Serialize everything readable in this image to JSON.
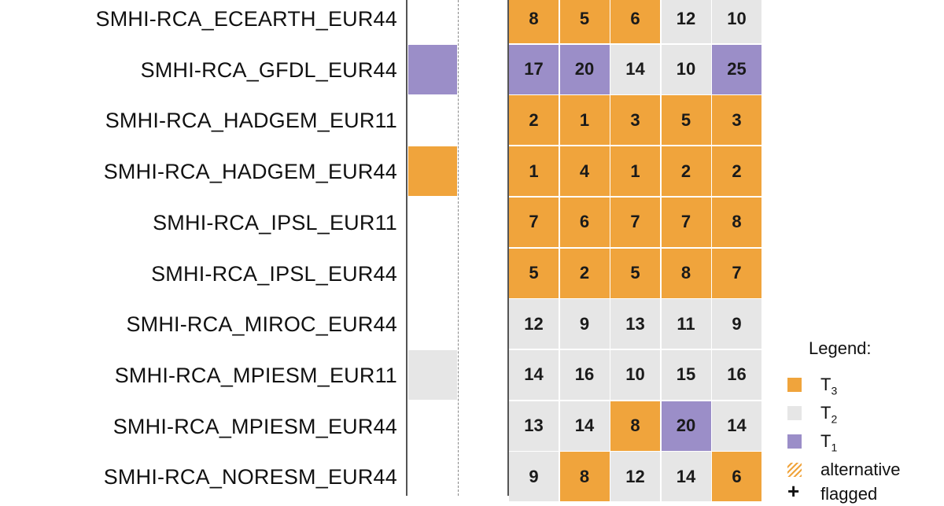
{
  "colors": {
    "T3": "#f0a43c",
    "T2": "#e6e6e6",
    "T1": "#9b8ec8",
    "text": "#1a1a1a"
  },
  "chart_data": {
    "type": "heatmap",
    "title": "",
    "rows": [
      {
        "label": "SMHI-RCA_ECEARTH_EUR44",
        "side": "none",
        "values": [
          8,
          5,
          6,
          12,
          10
        ],
        "tiers": [
          "T3",
          "T3",
          "T3",
          "T2",
          "T2"
        ]
      },
      {
        "label": "SMHI-RCA_GFDL_EUR44",
        "side": "T1",
        "values": [
          17,
          20,
          14,
          10,
          25
        ],
        "tiers": [
          "T1",
          "T1",
          "T2",
          "T2",
          "T1"
        ]
      },
      {
        "label": "SMHI-RCA_HADGEM_EUR11",
        "side": "none",
        "values": [
          2,
          1,
          3,
          5,
          3
        ],
        "tiers": [
          "T3",
          "T3",
          "T3",
          "T3",
          "T3"
        ]
      },
      {
        "label": "SMHI-RCA_HADGEM_EUR44",
        "side": "T3",
        "values": [
          1,
          4,
          1,
          2,
          2
        ],
        "tiers": [
          "T3",
          "T3",
          "T3",
          "T3",
          "T3"
        ]
      },
      {
        "label": "SMHI-RCA_IPSL_EUR11",
        "side": "none",
        "values": [
          7,
          6,
          7,
          7,
          8
        ],
        "tiers": [
          "T3",
          "T3",
          "T3",
          "T3",
          "T3"
        ]
      },
      {
        "label": "SMHI-RCA_IPSL_EUR44",
        "side": "none",
        "values": [
          5,
          2,
          5,
          8,
          7
        ],
        "tiers": [
          "T3",
          "T3",
          "T3",
          "T3",
          "T3"
        ]
      },
      {
        "label": "SMHI-RCA_MIROC_EUR44",
        "side": "none",
        "values": [
          12,
          9,
          13,
          11,
          9
        ],
        "tiers": [
          "T2",
          "T2",
          "T2",
          "T2",
          "T2"
        ]
      },
      {
        "label": "SMHI-RCA_MPIESM_EUR11",
        "side": "T2",
        "values": [
          14,
          16,
          10,
          15,
          16
        ],
        "tiers": [
          "T2",
          "T2",
          "T2",
          "T2",
          "T2"
        ]
      },
      {
        "label": "SMHI-RCA_MPIESM_EUR44",
        "side": "none",
        "values": [
          13,
          14,
          8,
          20,
          14
        ],
        "tiers": [
          "T2",
          "T2",
          "T3",
          "T1",
          "T2"
        ]
      },
      {
        "label": "SMHI-RCA_NORESM_EUR44",
        "side": "none",
        "values": [
          9,
          8,
          12,
          14,
          6
        ],
        "tiers": [
          "T2",
          "T3",
          "T2",
          "T2",
          "T3"
        ]
      }
    ],
    "legend": {
      "title": "Legend:",
      "placement": "bottom-right",
      "items": [
        {
          "key": "T3",
          "label": "T",
          "sub": "3"
        },
        {
          "key": "T2",
          "label": "T",
          "sub": "2"
        },
        {
          "key": "T1",
          "label": "T",
          "sub": "1"
        },
        {
          "key": "alternative",
          "label": "alternative",
          "sub": ""
        },
        {
          "key": "flagged",
          "label": "flagged",
          "sub": ""
        }
      ]
    }
  }
}
